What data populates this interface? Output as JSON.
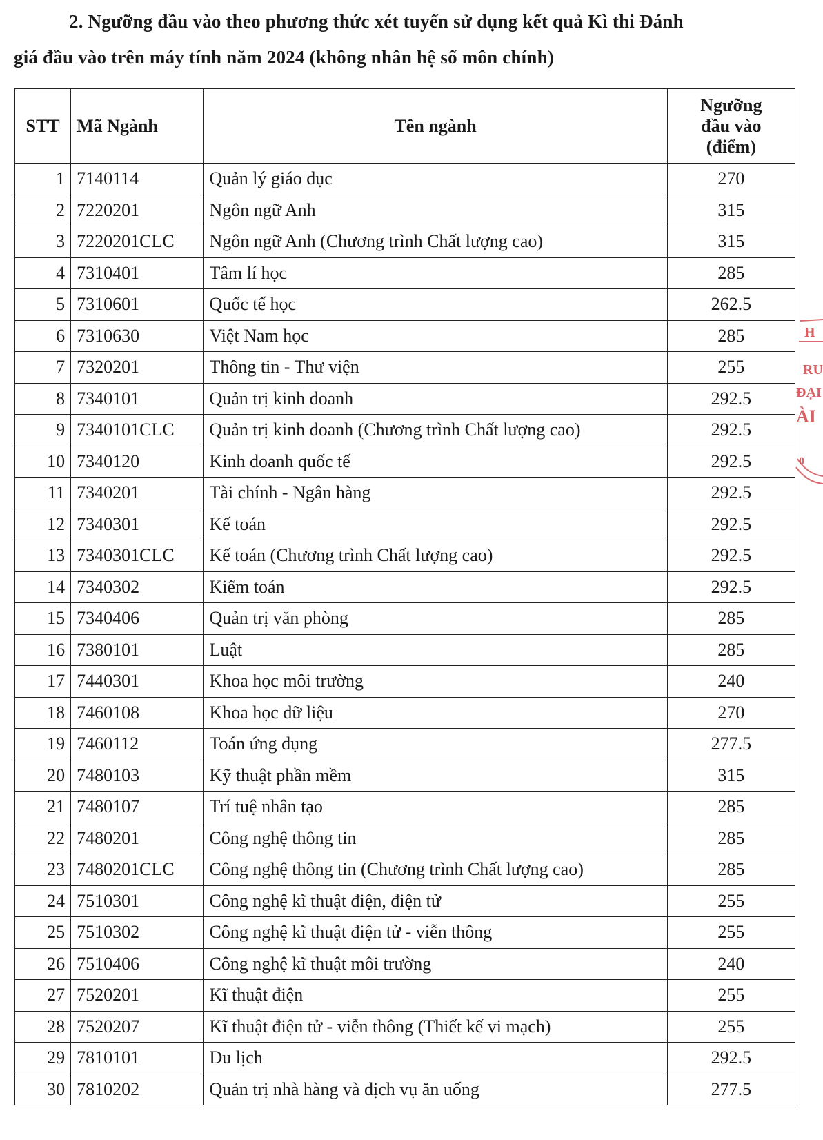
{
  "heading": {
    "line1": "2. Ngưỡng đầu vào theo phương thức xét tuyển sử dụng kết quả Kì thi Đánh",
    "line2": "giá đầu vào trên máy tính năm 2024 (không nhân hệ số môn chính)"
  },
  "table": {
    "headers": {
      "stt": "STT",
      "code": "Mã Ngành",
      "name": "Tên ngành",
      "score_line1": "Ngưỡng",
      "score_line2": "đầu vào",
      "score_line3": "(điểm)"
    },
    "rows": [
      {
        "stt": "1",
        "code": "7140114",
        "name": "Quản lý giáo dục",
        "score": "270"
      },
      {
        "stt": "2",
        "code": "7220201",
        "name": "Ngôn ngữ Anh",
        "score": "315"
      },
      {
        "stt": "3",
        "code": "7220201CLC",
        "name": "Ngôn ngữ Anh (Chương trình Chất lượng cao)",
        "score": "315"
      },
      {
        "stt": "4",
        "code": "7310401",
        "name": "Tâm lí học",
        "score": "285"
      },
      {
        "stt": "5",
        "code": "7310601",
        "name": "Quốc tế học",
        "score": "262.5"
      },
      {
        "stt": "6",
        "code": "7310630",
        "name": "Việt Nam học",
        "score": "285"
      },
      {
        "stt": "7",
        "code": "7320201",
        "name": "Thông tin - Thư viện",
        "score": "255"
      },
      {
        "stt": "8",
        "code": "7340101",
        "name": "Quản trị kinh doanh",
        "score": "292.5"
      },
      {
        "stt": "9",
        "code": "7340101CLC",
        "name": "Quản trị kinh doanh (Chương trình Chất lượng cao)",
        "score": "292.5"
      },
      {
        "stt": "10",
        "code": "7340120",
        "name": "Kinh doanh quốc tế",
        "score": "292.5"
      },
      {
        "stt": "11",
        "code": "7340201",
        "name": "Tài chính - Ngân hàng",
        "score": "292.5"
      },
      {
        "stt": "12",
        "code": "7340301",
        "name": "Kế toán",
        "score": "292.5"
      },
      {
        "stt": "13",
        "code": "7340301CLC",
        "name": "Kế toán (Chương trình Chất lượng cao)",
        "score": "292.5"
      },
      {
        "stt": "14",
        "code": "7340302",
        "name": "Kiểm toán",
        "score": "292.5"
      },
      {
        "stt": "15",
        "code": "7340406",
        "name": "Quản trị văn phòng",
        "score": "285"
      },
      {
        "stt": "16",
        "code": "7380101",
        "name": "Luật",
        "score": "285"
      },
      {
        "stt": "17",
        "code": "7440301",
        "name": "Khoa học môi trường",
        "score": "240"
      },
      {
        "stt": "18",
        "code": "7460108",
        "name": "Khoa học dữ liệu",
        "score": "270"
      },
      {
        "stt": "19",
        "code": "7460112",
        "name": "Toán ứng dụng",
        "score": "277.5"
      },
      {
        "stt": "20",
        "code": "7480103",
        "name": "Kỹ thuật phần mềm",
        "score": "315"
      },
      {
        "stt": "21",
        "code": "7480107",
        "name": "Trí tuệ nhân tạo",
        "score": "285"
      },
      {
        "stt": "22",
        "code": "7480201",
        "name": "Công nghệ thông tin",
        "score": "285"
      },
      {
        "stt": "23",
        "code": "7480201CLC",
        "name": "Công nghệ thông tin (Chương trình Chất lượng cao)",
        "score": "285"
      },
      {
        "stt": "24",
        "code": "7510301",
        "name": "Công nghệ kĩ thuật điện, điện tử",
        "score": "255"
      },
      {
        "stt": "25",
        "code": "7510302",
        "name": "Công nghệ kĩ thuật điện tử - viễn thông",
        "score": "255"
      },
      {
        "stt": "26",
        "code": "7510406",
        "name": "Công nghệ kĩ thuật môi trường",
        "score": "240"
      },
      {
        "stt": "27",
        "code": "7520201",
        "name": "Kĩ thuật điện",
        "score": "255"
      },
      {
        "stt": "28",
        "code": "7520207",
        "name": "Kĩ thuật điện tử - viễn thông (Thiết kế vi mạch)",
        "score": "255"
      },
      {
        "stt": "29",
        "code": "7810101",
        "name": "Du lịch",
        "score": "292.5"
      },
      {
        "stt": "30",
        "code": "7810202",
        "name": "Quản trị nhà hàng và dịch vụ ăn uống",
        "score": "277.5"
      }
    ]
  },
  "stamp": {
    "color": "#d0454a",
    "fragments": [
      "H",
      "RU",
      "ĐẠI",
      "ÀI"
    ]
  }
}
